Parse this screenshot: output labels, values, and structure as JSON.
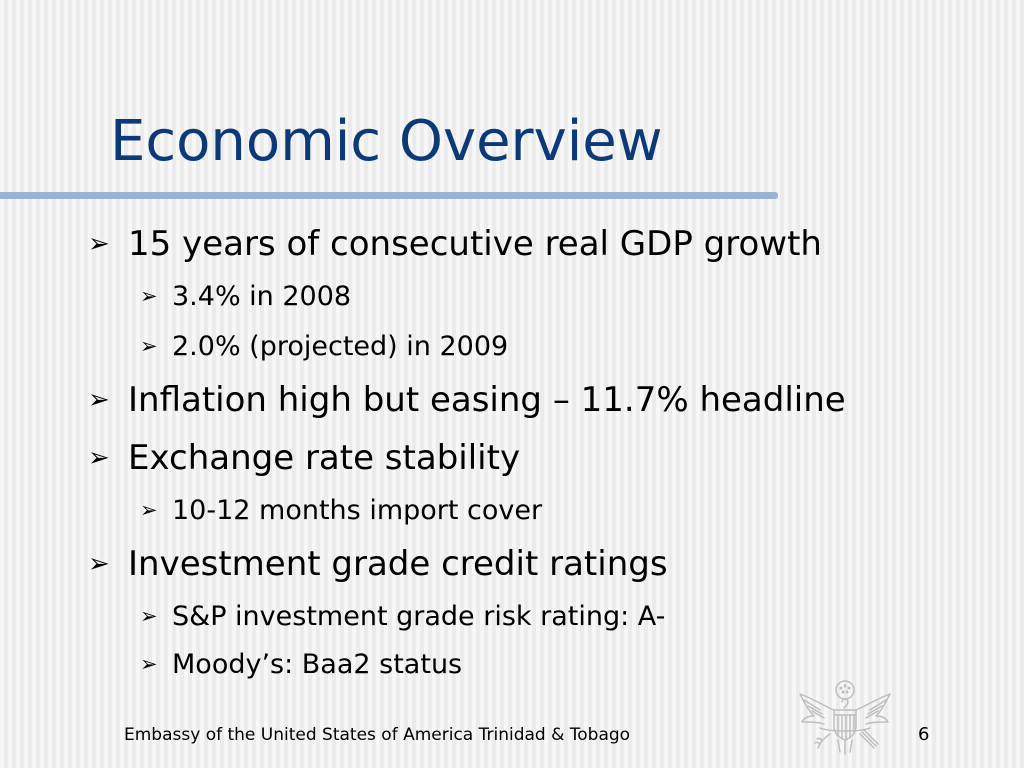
{
  "slide": {
    "title": "Economic Overview",
    "bullet_marker": "➢",
    "bullets": [
      {
        "level": 1,
        "text": "15 years of consecutive real GDP growth"
      },
      {
        "level": 2,
        "text": "3.4% in 2008"
      },
      {
        "level": 2,
        "text": "2.0% (projected) in 2009"
      },
      {
        "level": 1,
        "text": "Inflation high but easing – 11.7% headline"
      },
      {
        "level": 1,
        "text": "Exchange rate stability"
      },
      {
        "level": 2,
        "text": "10-12 months import cover"
      },
      {
        "level": 1,
        "text": "Investment grade credit ratings"
      },
      {
        "level": 2,
        "text": "S&P investment grade risk rating: A-"
      },
      {
        "level": 2,
        "text": "Moody’s: Baa2 status"
      }
    ]
  },
  "footer": {
    "text": "Embassy of the United States of America Trinidad & Tobago",
    "page_number": "6",
    "seal_icon": "great-seal-eagle-icon"
  },
  "colors": {
    "title": "#0c3a78",
    "title_rule": "#98b3d6",
    "text": "#000000"
  }
}
